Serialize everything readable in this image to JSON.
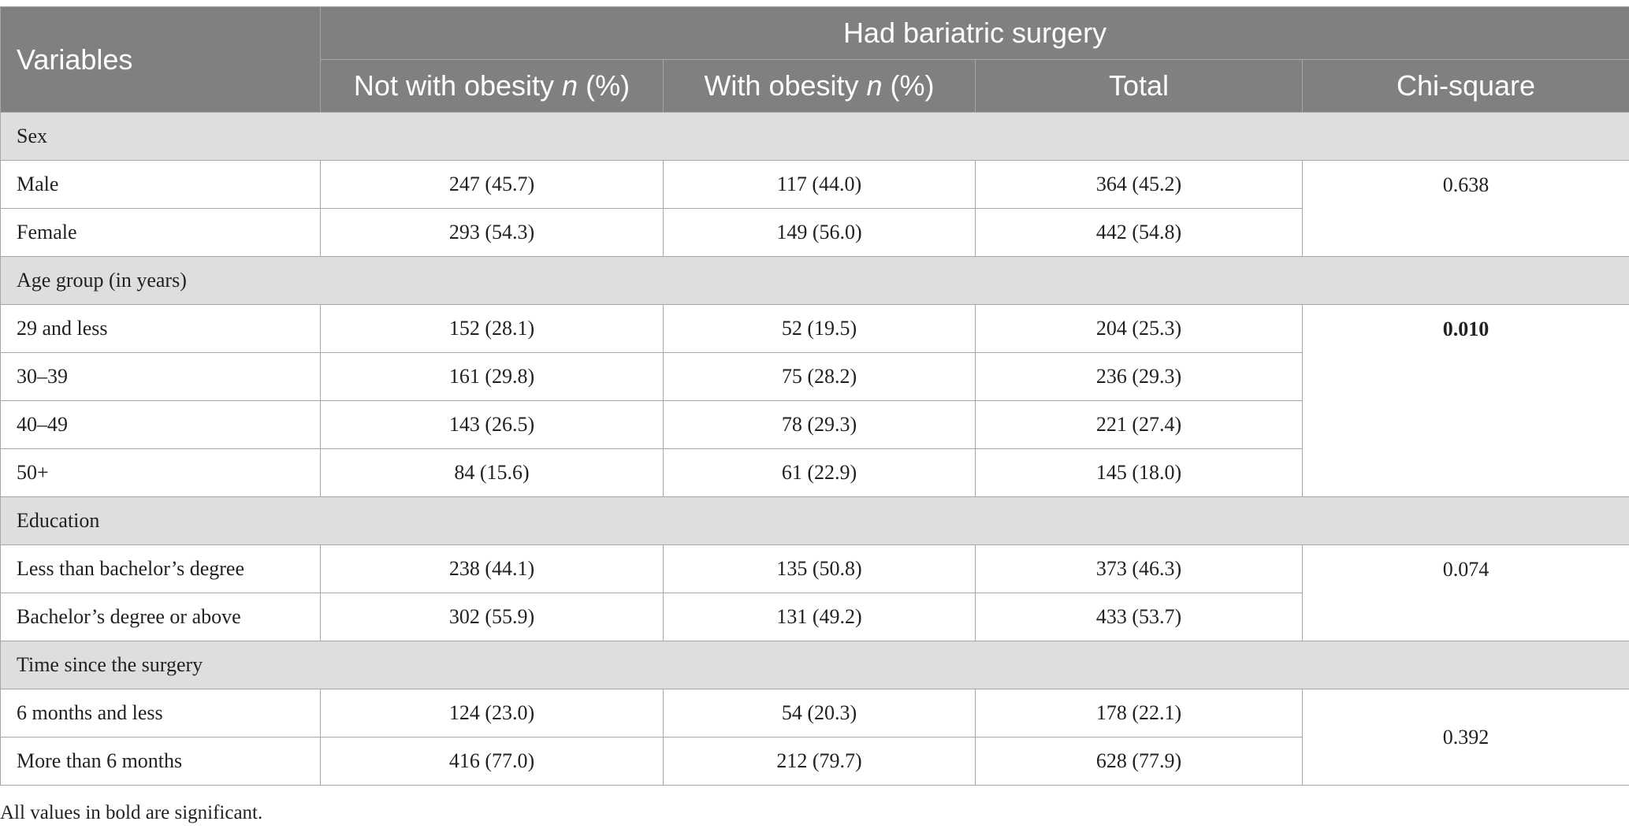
{
  "header": {
    "variables": "Variables",
    "group_title": "Had bariatric surgery",
    "col_not_obese_prefix": "Not with obesity ",
    "col_not_obese_italic": "n",
    "col_not_obese_suffix": " (%)",
    "col_obese_prefix": "With obesity ",
    "col_obese_italic": "n",
    "col_obese_suffix": " (%)",
    "col_total": "Total",
    "col_chi": "Chi-square"
  },
  "sections": [
    {
      "title": "Sex",
      "chi_square": "0.638",
      "chi_bold": false,
      "rows": [
        {
          "label": "Male",
          "not_obese": "247 (45.7)",
          "obese": "117 (44.0)",
          "total": "364 (45.2)"
        },
        {
          "label": "Female",
          "not_obese": "293 (54.3)",
          "obese": "149 (56.0)",
          "total": "442 (54.8)"
        }
      ]
    },
    {
      "title": "Age group (in years)",
      "chi_square": "0.010",
      "chi_bold": true,
      "rows": [
        {
          "label": "29 and less",
          "not_obese": "152 (28.1)",
          "obese": "52 (19.5)",
          "total": "204 (25.3)"
        },
        {
          "label": "30–39",
          "not_obese": "161 (29.8)",
          "obese": "75 (28.2)",
          "total": "236 (29.3)"
        },
        {
          "label": "40–49",
          "not_obese": "143 (26.5)",
          "obese": "78 (29.3)",
          "total": "221 (27.4)"
        },
        {
          "label": "50+",
          "not_obese": "84 (15.6)",
          "obese": "61 (22.9)",
          "total": "145 (18.0)"
        }
      ]
    },
    {
      "title": "Education",
      "chi_square": "0.074",
      "chi_bold": false,
      "rows": [
        {
          "label": "Less than bachelor’s degree",
          "not_obese": "238 (44.1)",
          "obese": "135 (50.8)",
          "total": "373 (46.3)"
        },
        {
          "label": "Bachelor’s degree or above",
          "not_obese": "302 (55.9)",
          "obese": "131 (49.2)",
          "total": "433 (53.7)"
        }
      ]
    },
    {
      "title": "Time since the surgery",
      "chi_square": "0.392",
      "chi_bold": false,
      "chi_middle": true,
      "rows": [
        {
          "label": "6 months and less",
          "not_obese": "124 (23.0)",
          "obese": "54 (20.3)",
          "total": "178 (22.1)"
        },
        {
          "label": "More than 6 months",
          "not_obese": "416 (77.0)",
          "obese": "212 (79.7)",
          "total": "628 (77.9)"
        }
      ]
    }
  ],
  "footnote": "All values in bold are significant.",
  "colors": {
    "header_bg": "#7f807f",
    "group_bg": "#dedddf",
    "border": "#a6a6a6"
  }
}
